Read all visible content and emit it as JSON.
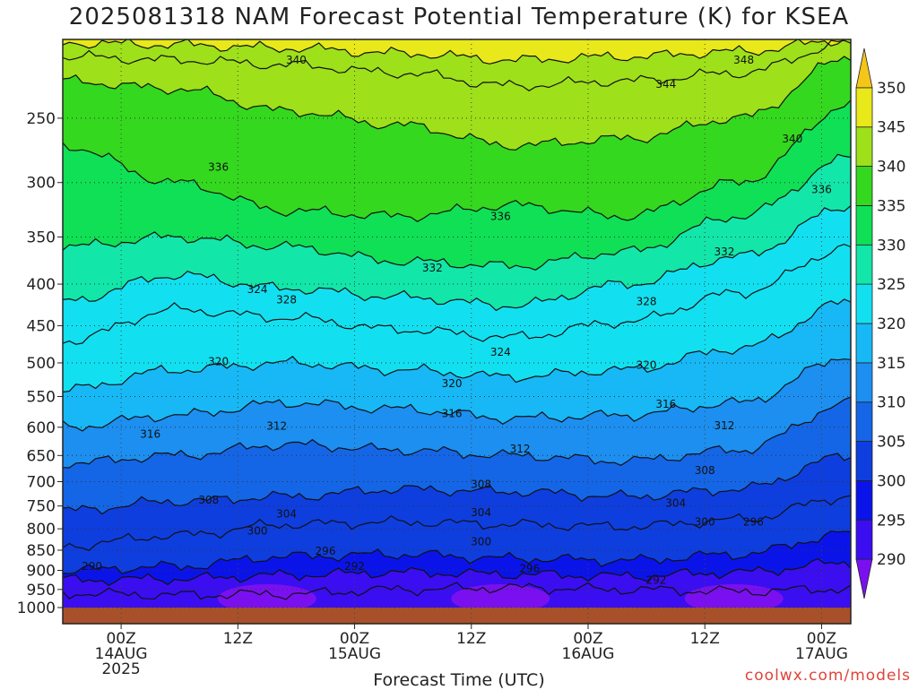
{
  "title": "2025081318 NAM Forecast Potential Temperature (K) for KSEA",
  "credit": "coolwx.com/models",
  "chart_data": {
    "type": "heatmap",
    "title": "2025081318 NAM Forecast Potential Temperature (K) for KSEA",
    "xlabel": "Forecast Time (UTC)",
    "ylabel": "",
    "y_axis": {
      "unit": "hPa",
      "scale": "log-pressure, inverted (1000 at bottom)",
      "ticks": [
        250,
        300,
        350,
        400,
        450,
        500,
        550,
        600,
        650,
        700,
        750,
        800,
        850,
        900,
        950,
        1000
      ],
      "range": [
        200,
        1000
      ]
    },
    "x_axis": {
      "range": [
        "2025-08-13 18Z",
        "2025-08-17 03Z"
      ],
      "ticks": [
        {
          "time": "2025-08-14 00Z",
          "lines": [
            "00Z",
            "14AUG",
            "2025"
          ]
        },
        {
          "time": "2025-08-14 12Z",
          "lines": [
            "12Z"
          ]
        },
        {
          "time": "2025-08-15 00Z",
          "lines": [
            "00Z",
            "15AUG"
          ]
        },
        {
          "time": "2025-08-15 12Z",
          "lines": [
            "12Z"
          ]
        },
        {
          "time": "2025-08-16 00Z",
          "lines": [
            "00Z",
            "16AUG"
          ]
        },
        {
          "time": "2025-08-16 12Z",
          "lines": [
            "12Z"
          ]
        },
        {
          "time": "2025-08-17 00Z",
          "lines": [
            "00Z",
            "17AUG"
          ]
        }
      ]
    },
    "grid": true,
    "colorbar": {
      "unit": "K",
      "position": "right",
      "levels": [
        290,
        295,
        300,
        305,
        310,
        315,
        320,
        325,
        330,
        335,
        340,
        345,
        350
      ],
      "colors": [
        "#7a10f0",
        "#3a0ef0",
        "#0b14e8",
        "#0f3ede",
        "#1466e6",
        "#1c8ff0",
        "#17b8f5",
        "#12e0f0",
        "#12e6a8",
        "#10e055",
        "#34d81e",
        "#9ee01a",
        "#e8e81a",
        "#f5c61a"
      ]
    },
    "contour_interval": 2,
    "contours": [
      {
        "level": 292,
        "p": [
          960,
          965,
          962,
          950,
          945,
          950,
          955,
          948
        ]
      },
      {
        "level": 296,
        "p": [
          925,
          922,
          912,
          905,
          910,
          915,
          905,
          880
        ]
      },
      {
        "level": 300,
        "p": [
          900,
          890,
          865,
          860,
          870,
          875,
          860,
          810
        ]
      },
      {
        "level": 304,
        "p": [
          840,
          815,
          790,
          785,
          790,
          795,
          780,
          730
        ]
      },
      {
        "level": 308,
        "p": [
          760,
          740,
          730,
          715,
          720,
          730,
          715,
          650
        ]
      },
      {
        "level": 312,
        "p": [
          665,
          650,
          630,
          640,
          650,
          660,
          640,
          560
        ]
      },
      {
        "level": 316,
        "p": [
          600,
          580,
          560,
          570,
          585,
          580,
          560,
          490
        ]
      },
      {
        "level": 320,
        "p": [
          540,
          510,
          500,
          510,
          520,
          510,
          480,
          420
        ]
      },
      {
        "level": 324,
        "p": [
          470,
          430,
          440,
          455,
          465,
          445,
          410,
          360
        ]
      },
      {
        "level": 328,
        "p": [
          420,
          390,
          405,
          415,
          425,
          400,
          370,
          320
        ]
      },
      {
        "level": 332,
        "p": [
          360,
          350,
          360,
          375,
          380,
          365,
          330,
          280
        ]
      },
      {
        "level": 336,
        "p": [
          270,
          300,
          325,
          330,
          320,
          330,
          300,
          240
        ]
      },
      {
        "level": 340,
        "p": [
          225,
          230,
          245,
          255,
          270,
          265,
          250,
          210
        ]
      },
      {
        "level": 344,
        "p": [
          210,
          212,
          215,
          220,
          228,
          225,
          220,
          202
        ]
      },
      {
        "level": 348,
        "p": [
          202,
          203,
          205,
          208,
          212,
          210,
          207,
          200
        ]
      }
    ],
    "contour_labels": [
      {
        "text": "340",
        "time": "2025-08-14 18Z",
        "p": 212
      },
      {
        "text": "348",
        "time": "2025-08-16 16Z",
        "p": 212
      },
      {
        "text": "344",
        "time": "2025-08-16 08Z",
        "p": 227
      },
      {
        "text": "340",
        "time": "2025-08-16 21Z",
        "p": 265
      },
      {
        "text": "336",
        "time": "2025-08-14 10Z",
        "p": 287
      },
      {
        "text": "336",
        "time": "2025-08-17 00Z",
        "p": 306
      },
      {
        "text": "336",
        "time": "2025-08-15 15Z",
        "p": 330
      },
      {
        "text": "332",
        "time": "2025-08-16 14Z",
        "p": 365
      },
      {
        "text": "332",
        "time": "2025-08-15 08Z",
        "p": 382
      },
      {
        "text": "324",
        "time": "2025-08-14 14Z",
        "p": 406
      },
      {
        "text": "328",
        "time": "2025-08-14 17Z",
        "p": 418
      },
      {
        "text": "328",
        "time": "2025-08-16 06Z",
        "p": 420
      },
      {
        "text": "324",
        "time": "2025-08-15 15Z",
        "p": 485
      },
      {
        "text": "320",
        "time": "2025-08-14 10Z",
        "p": 498
      },
      {
        "text": "320",
        "time": "2025-08-16 06Z",
        "p": 503
      },
      {
        "text": "320",
        "time": "2025-08-15 10Z",
        "p": 530
      },
      {
        "text": "316",
        "time": "2025-08-16 08Z",
        "p": 562
      },
      {
        "text": "316",
        "time": "2025-08-15 10Z",
        "p": 577
      },
      {
        "text": "312",
        "time": "2025-08-16 14Z",
        "p": 597
      },
      {
        "text": "316",
        "time": "2025-08-14 03Z",
        "p": 612
      },
      {
        "text": "312",
        "time": "2025-08-14 16Z",
        "p": 598
      },
      {
        "text": "312",
        "time": "2025-08-15 17Z",
        "p": 638
      },
      {
        "text": "308",
        "time": "2025-08-16 12Z",
        "p": 678
      },
      {
        "text": "308",
        "time": "2025-08-15 13Z",
        "p": 705
      },
      {
        "text": "308",
        "time": "2025-08-14 09Z",
        "p": 737
      },
      {
        "text": "304",
        "time": "2025-08-16 09Z",
        "p": 744
      },
      {
        "text": "304",
        "time": "2025-08-14 17Z",
        "p": 767
      },
      {
        "text": "304",
        "time": "2025-08-15 13Z",
        "p": 764
      },
      {
        "text": "300",
        "time": "2025-08-16 12Z",
        "p": 785
      },
      {
        "text": "296",
        "time": "2025-08-16 17Z",
        "p": 785
      },
      {
        "text": "300",
        "time": "2025-08-14 14Z",
        "p": 805
      },
      {
        "text": "300",
        "time": "2025-08-15 13Z",
        "p": 830
      },
      {
        "text": "296",
        "time": "2025-08-14 21Z",
        "p": 852
      },
      {
        "text": "292",
        "time": "2025-08-15 00Z",
        "p": 890
      },
      {
        "text": "296",
        "time": "2025-08-15 18Z",
        "p": 895
      },
      {
        "text": "290",
        "time": "2025-08-13 21Z",
        "p": 890
      },
      {
        "text": "292",
        "time": "2025-08-16 07Z",
        "p": 925
      }
    ]
  }
}
